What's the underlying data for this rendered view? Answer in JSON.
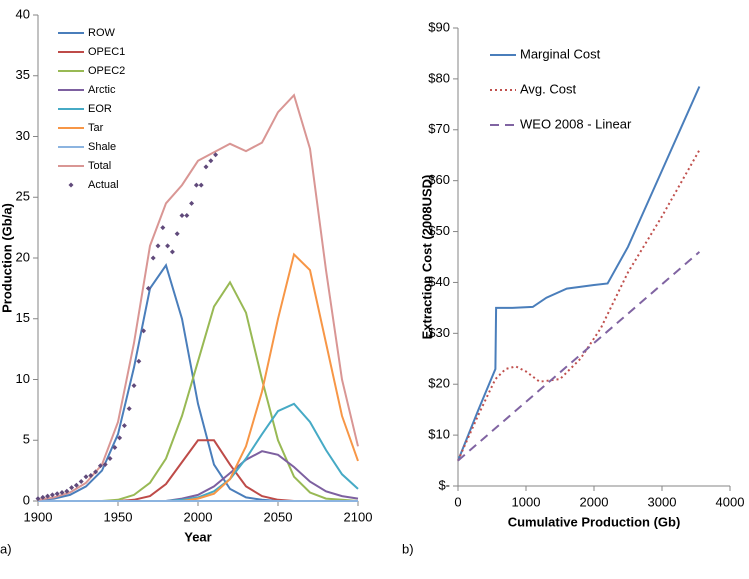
{
  "chart_data": [
    {
      "type": "line",
      "panel_label": "a)",
      "x_label": "Year",
      "y_label": "Production (Gb/a)",
      "xlim": [
        1900,
        2100
      ],
      "xticks": [
        1900,
        1950,
        2000,
        2050,
        2100
      ],
      "ylim": [
        0,
        40
      ],
      "yticks": [
        0,
        5,
        10,
        15,
        20,
        25,
        30,
        35,
        40
      ],
      "legend_position": "upper left",
      "x": [
        1900,
        1910,
        1920,
        1930,
        1940,
        1950,
        1960,
        1970,
        1980,
        1990,
        2000,
        2010,
        2020,
        2030,
        2040,
        2050,
        2060,
        2070,
        2080,
        2090,
        2100
      ],
      "series": [
        {
          "name": "ROW",
          "color": "#4a7ebb",
          "values": [
            0.1,
            0.2,
            0.5,
            1.2,
            2.5,
            5.5,
            11,
            17.5,
            19.4,
            15,
            8,
            3,
            1,
            0.3,
            0.1,
            0,
            0,
            0,
            0,
            0,
            0
          ]
        },
        {
          "name": "OPEC1",
          "color": "#be4b48",
          "values": [
            0,
            0,
            0,
            0,
            0,
            0,
            0.1,
            0.4,
            1.4,
            3.2,
            5,
            5,
            3,
            1.2,
            0.4,
            0.1,
            0,
            0,
            0,
            0,
            0
          ]
        },
        {
          "name": "OPEC2",
          "color": "#98b954",
          "values": [
            0,
            0,
            0,
            0,
            0,
            0.1,
            0.5,
            1.5,
            3.5,
            7,
            11.5,
            16,
            18,
            15.5,
            10,
            5,
            2,
            0.7,
            0.2,
            0.1,
            0
          ]
        },
        {
          "name": "Arctic",
          "color": "#7d60a0",
          "values": [
            0,
            0,
            0,
            0,
            0,
            0,
            0,
            0,
            0,
            0.2,
            0.5,
            1.2,
            2.3,
            3.4,
            4.1,
            3.8,
            2.8,
            1.6,
            0.8,
            0.4,
            0.2
          ]
        },
        {
          "name": "EOR",
          "color": "#46aac5",
          "values": [
            0,
            0,
            0,
            0,
            0,
            0,
            0,
            0,
            0,
            0.1,
            0.3,
            0.8,
            1.8,
            3.5,
            5.5,
            7.4,
            8,
            6.5,
            4.2,
            2.2,
            1
          ]
        },
        {
          "name": "Tar",
          "color": "#f79646",
          "values": [
            0,
            0,
            0,
            0,
            0,
            0,
            0,
            0,
            0,
            0,
            0.2,
            0.6,
            1.8,
            4.5,
            9,
            15,
            20.3,
            19,
            13,
            7,
            3.3
          ]
        },
        {
          "name": "Shale",
          "color": "#8cb4e0",
          "values": [
            0,
            0,
            0,
            0,
            0,
            0,
            0,
            0,
            0,
            0,
            0,
            0,
            0,
            0,
            0,
            0,
            0,
            0,
            0,
            0,
            0
          ]
        },
        {
          "name": "Total",
          "color": "#d99694",
          "values": [
            0.1,
            0.3,
            0.7,
            1.5,
            3,
            6.5,
            13,
            21,
            24.5,
            26,
            28,
            28.7,
            29.4,
            28.8,
            29.5,
            32,
            33.4,
            29,
            19,
            10,
            4.5
          ]
        },
        {
          "name": "Actual",
          "color": "#604a7b",
          "mode": "markers",
          "x": [
            1900,
            1903,
            1906,
            1909,
            1912,
            1915,
            1918,
            1921,
            1924,
            1927,
            1930,
            1933,
            1936,
            1939,
            1942,
            1945,
            1948,
            1951,
            1954,
            1957,
            1960,
            1963,
            1966,
            1969,
            1972,
            1975,
            1978,
            1981,
            1984,
            1987,
            1990,
            1993,
            1996,
            1999,
            2002,
            2005,
            2008,
            2011
          ],
          "values": [
            0.2,
            0.3,
            0.4,
            0.5,
            0.6,
            0.7,
            0.8,
            1.1,
            1.3,
            1.6,
            2,
            2.1,
            2.4,
            2.9,
            3,
            3.5,
            4.4,
            5.2,
            6.2,
            7.6,
            9.5,
            11.5,
            14,
            17.5,
            20,
            21,
            22.5,
            21,
            20.5,
            22,
            23.5,
            23.5,
            24.5,
            26,
            26,
            27.5,
            28,
            28.5
          ]
        }
      ]
    },
    {
      "type": "line",
      "panel_label": "b)",
      "x_label": "Cumulative Production (Gb)",
      "y_label": "Extraction Cost (2008USD)",
      "xlim": [
        0,
        4000
      ],
      "xticks": [
        0,
        1000,
        2000,
        3000,
        4000
      ],
      "ylim": [
        0,
        90
      ],
      "yticks": [
        {
          "value": 0,
          "label": "$-"
        },
        {
          "value": 10,
          "label": "$10"
        },
        {
          "value": 20,
          "label": "$20"
        },
        {
          "value": 30,
          "label": "$30"
        },
        {
          "value": 40,
          "label": "$40"
        },
        {
          "value": 50,
          "label": "$50"
        },
        {
          "value": 60,
          "label": "$60"
        },
        {
          "value": 70,
          "label": "$70"
        },
        {
          "value": 80,
          "label": "$80"
        },
        {
          "value": 90,
          "label": "$90"
        }
      ],
      "legend_position": "upper left",
      "series": [
        {
          "name": "Marginal  Cost",
          "color": "#4a7ebb",
          "dash": "solid",
          "x": [
            0,
            300,
            550,
            560,
            800,
            1100,
            1300,
            1600,
            2000,
            2200,
            2500,
            3000,
            3550
          ],
          "values": [
            5,
            15,
            23,
            35,
            35,
            35.2,
            37,
            38.8,
            39.5,
            39.8,
            47,
            62,
            78.5
          ]
        },
        {
          "name": "Avg.  Cost",
          "color": "#c0504d",
          "dash": "dotted",
          "x": [
            0,
            300,
            550,
            700,
            850,
            1000,
            1200,
            1500,
            1800,
            2100,
            2500,
            3000,
            3550
          ],
          "values": [
            5,
            14,
            21,
            23,
            23.5,
            22.5,
            20.5,
            21,
            25,
            31,
            42,
            53,
            66
          ]
        },
        {
          "name": "WEO 2008 - Linear",
          "color": "#8064a2",
          "dash": "dashed",
          "x": [
            0,
            3550
          ],
          "values": [
            5,
            46
          ]
        }
      ]
    }
  ]
}
